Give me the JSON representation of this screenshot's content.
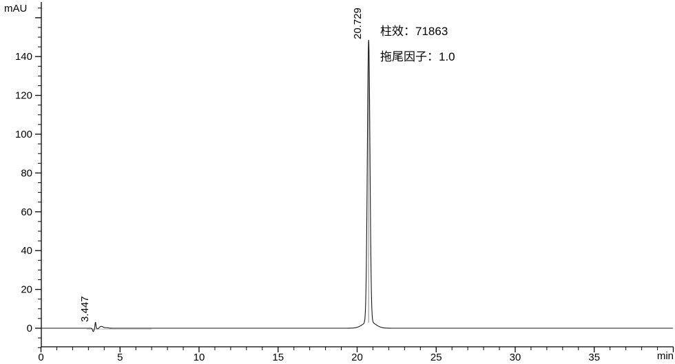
{
  "chart_data": {
    "type": "line",
    "title": "",
    "x_unit": "min",
    "y_unit": "mAU",
    "xlim": [
      0,
      40
    ],
    "ylim": [
      -9.6,
      168
    ],
    "x_tick_labels": [
      "0",
      "5",
      "10",
      "15",
      "20",
      "25",
      "30",
      "35"
    ],
    "x_major_tick_values": [
      0,
      5,
      10,
      15,
      20,
      25,
      30,
      35,
      40
    ],
    "x_minor_step": 1,
    "y_tick_labels": [
      "0",
      "20",
      "40",
      "60",
      "80",
      "100",
      "120",
      "140"
    ],
    "y_major_tick_values": [
      0,
      20,
      40,
      60,
      80,
      100,
      120,
      140,
      160
    ],
    "y_minor_step": 5,
    "grid": false,
    "background_color": "#ffffff",
    "axis_color": "#000000",
    "trace_color": "#161616",
    "trace_shadow_color": "#c4c4c4",
    "peaks": [
      {
        "label": "3.447",
        "rt_min": 3.447,
        "height_mau": 3.1
      },
      {
        "label": "20.729",
        "rt_min": 20.729,
        "height_mau": 148.5
      }
    ],
    "trace_model": {
      "baseline_mau": 0,
      "components": [
        {
          "type": "gauss",
          "center_min": 3.31,
          "height_mau": -1.7,
          "sigma_min": 0.045
        },
        {
          "type": "gauss",
          "center_min": 3.447,
          "height_mau": 3.1,
          "sigma_min": 0.028
        },
        {
          "type": "gauss",
          "center_min": 3.6,
          "height_mau": -0.4,
          "sigma_min": 0.055
        },
        {
          "type": "gauss",
          "center_min": 3.82,
          "height_mau": 0.95,
          "sigma_min": 0.11
        },
        {
          "type": "gauss",
          "center_min": 4.15,
          "height_mau": 0.25,
          "sigma_min": 0.12
        },
        {
          "type": "gauss",
          "center_min": 20.729,
          "height_mau": 145.0,
          "sigma_min": 0.082
        },
        {
          "type": "gauss",
          "center_min": 20.76,
          "height_mau": 3.5,
          "sigma_min": 0.38
        }
      ]
    },
    "annotations": [
      {
        "text": "柱效：71863"
      },
      {
        "text": "拖尾因子：1.0"
      }
    ]
  }
}
